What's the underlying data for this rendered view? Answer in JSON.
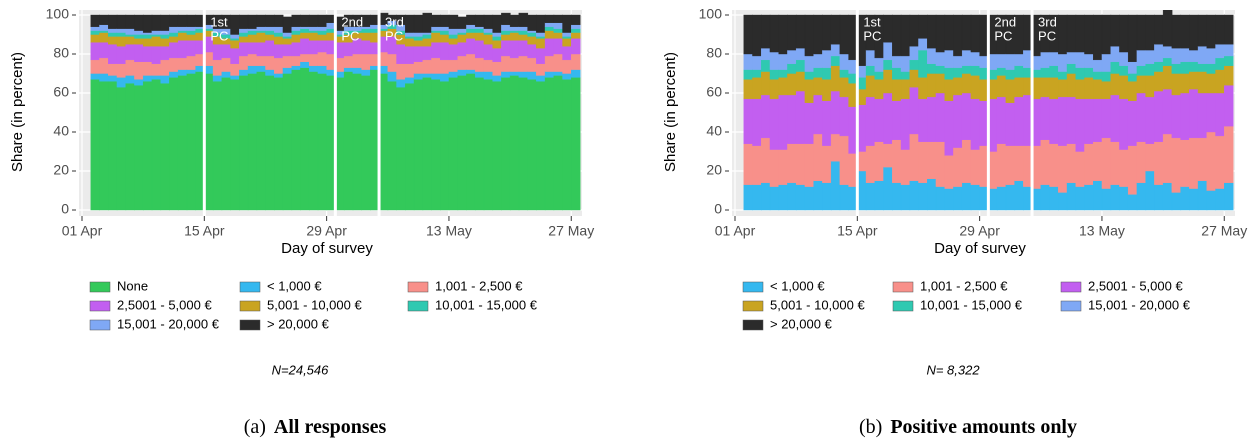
{
  "chart_data": [
    {
      "type": "area",
      "stacked": true,
      "step": true,
      "y_label": "Share (in percent)",
      "x_label": "Day of survey",
      "x": [
        "04-02",
        "04-03",
        "04-04",
        "04-05",
        "04-06",
        "04-07",
        "04-08",
        "04-09",
        "04-10",
        "04-11",
        "04-12",
        "04-13",
        "04-14",
        "04-15",
        "04-16",
        "04-17",
        "04-18",
        "04-19",
        "04-20",
        "04-21",
        "04-22",
        "04-23",
        "04-24",
        "04-25",
        "04-26",
        "04-27",
        "04-28",
        "04-29",
        "04-30",
        "05-01",
        "05-02",
        "05-03",
        "05-04",
        "05-05",
        "05-06",
        "05-07",
        "05-08",
        "05-09",
        "05-10",
        "05-11",
        "05-12",
        "05-13",
        "05-14",
        "05-15",
        "05-16",
        "05-17",
        "05-18",
        "05-19",
        "05-20",
        "05-21",
        "05-22",
        "05-23",
        "05-24",
        "05-25",
        "05-26",
        "05-27"
      ],
      "series": [
        {
          "name": "None",
          "color": "#33c95a",
          "values": [
            67,
            66,
            66,
            63,
            65,
            64,
            66,
            67,
            65,
            68,
            69,
            70,
            71,
            70,
            66,
            68,
            67,
            69,
            70,
            71,
            69,
            68,
            70,
            72,
            73,
            71,
            70,
            69,
            68,
            71,
            70,
            69,
            72,
            70,
            66,
            63,
            65,
            67,
            68,
            67,
            66,
            68,
            69,
            70,
            68,
            67,
            66,
            68,
            69,
            68,
            67,
            66,
            68,
            69,
            67,
            68
          ]
        },
        {
          "name": "< 1,000 €",
          "color": "#35b8ef",
          "values": [
            3,
            4,
            3,
            5,
            4,
            3,
            3,
            2,
            4,
            3,
            3,
            2,
            3,
            4,
            3,
            3,
            2,
            3,
            4,
            3,
            3,
            2,
            3,
            2,
            3,
            3,
            4,
            3,
            3,
            2,
            3,
            3,
            2,
            4,
            5,
            4,
            3,
            3,
            2,
            3,
            4,
            3,
            3,
            2,
            3,
            4,
            3,
            3,
            2,
            3,
            4,
            3,
            3,
            2,
            3,
            4
          ]
        },
        {
          "name": "1,001 - 2,500 €",
          "color": "#f8908a",
          "values": [
            7,
            8,
            6,
            7,
            8,
            9,
            7,
            6,
            8,
            7,
            6,
            7,
            6,
            7,
            8,
            7,
            6,
            7,
            6,
            5,
            7,
            8,
            6,
            5,
            4,
            6,
            7,
            8,
            7,
            6,
            7,
            8,
            6,
            7,
            9,
            8,
            7,
            6,
            7,
            8,
            7,
            6,
            7,
            8,
            7,
            6,
            7,
            8,
            7,
            8,
            7,
            6,
            8,
            9,
            7,
            8
          ]
        },
        {
          "name": "2,5001 - 5,000 €",
          "color": "#c25ff0",
          "values": [
            9,
            8,
            10,
            9,
            8,
            9,
            8,
            9,
            7,
            8,
            9,
            8,
            7,
            8,
            8,
            7,
            8,
            7,
            6,
            7,
            8,
            7,
            6,
            7,
            8,
            7,
            6,
            7,
            8,
            7,
            8,
            7,
            6,
            8,
            9,
            10,
            9,
            8,
            7,
            8,
            9,
            8,
            7,
            8,
            9,
            8,
            7,
            8,
            9,
            8,
            7,
            8,
            9,
            8,
            7,
            8
          ]
        },
        {
          "name": "5,001 - 10,000 €",
          "color": "#c9a421",
          "values": [
            4,
            5,
            4,
            5,
            4,
            3,
            4,
            5,
            4,
            3,
            4,
            3,
            4,
            3,
            4,
            3,
            4,
            3,
            4,
            5,
            3,
            4,
            3,
            4,
            3,
            4,
            3,
            4,
            3,
            4,
            3,
            4,
            5,
            3,
            4,
            5,
            4,
            3,
            4,
            5,
            4,
            3,
            4,
            3,
            4,
            5,
            4,
            3,
            4,
            3,
            4,
            5,
            4,
            3,
            4,
            3
          ]
        },
        {
          "name": "10,001 - 15,000 €",
          "color": "#2fc9b1",
          "values": [
            2,
            1,
            2,
            2,
            1,
            2,
            2,
            1,
            2,
            2,
            1,
            2,
            2,
            1,
            2,
            2,
            1,
            2,
            2,
            1,
            2,
            2,
            1,
            2,
            2,
            1,
            2,
            2,
            1,
            2,
            1,
            2,
            2,
            1,
            2,
            2,
            1,
            2,
            2,
            1,
            2,
            2,
            1,
            2,
            2,
            1,
            2,
            2,
            1,
            2,
            2,
            1,
            2,
            2,
            1,
            2
          ]
        },
        {
          "name": "15,001 - 20,000 €",
          "color": "#7fa8f5",
          "values": [
            2,
            3,
            2,
            2,
            3,
            2,
            1,
            2,
            2,
            3,
            2,
            2,
            1,
            2,
            2,
            3,
            2,
            2,
            1,
            2,
            2,
            3,
            2,
            2,
            1,
            2,
            2,
            3,
            2,
            2,
            2,
            1,
            2,
            2,
            2,
            3,
            2,
            2,
            1,
            2,
            2,
            3,
            2,
            2,
            1,
            2,
            2,
            3,
            2,
            2,
            1,
            2,
            2,
            3,
            2,
            2
          ]
        },
        {
          "name": "> 20,000 €",
          "color": "#2b2b2b",
          "values": [
            6,
            5,
            7,
            7,
            7,
            8,
            9,
            8,
            8,
            6,
            6,
            6,
            6,
            5,
            7,
            7,
            10,
            7,
            7,
            6,
            6,
            6,
            8,
            6,
            6,
            6,
            6,
            4,
            7,
            6,
            6,
            6,
            5,
            6,
            3,
            5,
            9,
            9,
            10,
            6,
            6,
            7,
            6,
            5,
            6,
            7,
            9,
            6,
            6,
            7,
            8,
            9,
            4,
            4,
            9,
            5
          ]
        }
      ],
      "xlim": [
        "04-01",
        "05-28"
      ],
      "xticks": [
        {
          "value": "04-01",
          "label": "01 Apr"
        },
        {
          "value": "04-15",
          "label": "15 Apr"
        },
        {
          "value": "04-29",
          "label": "29 Apr"
        },
        {
          "value": "05-13",
          "label": "13 May"
        },
        {
          "value": "05-27",
          "label": "27 May"
        }
      ],
      "ylim": [
        0,
        100
      ],
      "yticks": [
        0,
        20,
        40,
        60,
        80,
        100
      ],
      "grid": true,
      "legend": "bottom",
      "annotations": [
        {
          "x": "04-15",
          "lines": [
            "1st",
            "PC"
          ]
        },
        {
          "x": "04-30",
          "lines": [
            "2nd",
            "PC"
          ]
        },
        {
          "x": "05-05",
          "lines": [
            "3rd",
            "PC"
          ]
        }
      ],
      "note": "N=24,546",
      "caption": {
        "label": "(a)",
        "title": "All responses"
      }
    },
    {
      "type": "area",
      "stacked": true,
      "step": true,
      "y_label": "Share (in percent)",
      "x_label": "Day of survey",
      "x": [
        "04-02",
        "04-03",
        "04-04",
        "04-05",
        "04-06",
        "04-07",
        "04-08",
        "04-09",
        "04-10",
        "04-11",
        "04-12",
        "04-13",
        "04-14",
        "04-15",
        "04-16",
        "04-17",
        "04-18",
        "04-19",
        "04-20",
        "04-21",
        "04-22",
        "04-23",
        "04-24",
        "04-25",
        "04-26",
        "04-27",
        "04-28",
        "04-29",
        "04-30",
        "05-01",
        "05-02",
        "05-03",
        "05-04",
        "05-05",
        "05-06",
        "05-07",
        "05-08",
        "05-09",
        "05-10",
        "05-11",
        "05-12",
        "05-13",
        "05-14",
        "05-15",
        "05-16",
        "05-17",
        "05-18",
        "05-19",
        "05-20",
        "05-21",
        "05-22",
        "05-23",
        "05-24",
        "05-25",
        "05-26",
        "05-27"
      ],
      "series": [
        {
          "name": "< 1,000 €",
          "color": "#35b8ef",
          "values": [
            13,
            13,
            14,
            12,
            13,
            14,
            13,
            12,
            15,
            14,
            25,
            13,
            12,
            20,
            14,
            15,
            22,
            14,
            13,
            15,
            14,
            16,
            12,
            11,
            12,
            14,
            13,
            12,
            11,
            12,
            13,
            15,
            12,
            11,
            13,
            12,
            9,
            14,
            12,
            13,
            15,
            11,
            13,
            12,
            8,
            14,
            20,
            13,
            14,
            9,
            12,
            11,
            15,
            10,
            11,
            14
          ]
        },
        {
          "name": "1,001 - 2,500 €",
          "color": "#f8908a",
          "values": [
            21,
            20,
            23,
            19,
            18,
            20,
            21,
            22,
            24,
            19,
            14,
            25,
            17,
            10,
            19,
            20,
            12,
            22,
            18,
            24,
            21,
            19,
            23,
            17,
            20,
            22,
            18,
            21,
            19,
            22,
            20,
            18,
            21,
            22,
            23,
            22,
            24,
            20,
            18,
            21,
            20,
            26,
            22,
            19,
            25,
            21,
            14,
            22,
            25,
            28,
            24,
            26,
            22,
            30,
            27,
            29
          ]
        },
        {
          "name": "2,5001 - 5,000 €",
          "color": "#c25ff0",
          "values": [
            23,
            24,
            22,
            26,
            28,
            25,
            27,
            21,
            20,
            23,
            22,
            20,
            24,
            24,
            25,
            22,
            26,
            20,
            26,
            24,
            22,
            23,
            25,
            28,
            27,
            24,
            26,
            23,
            27,
            24,
            22,
            25,
            26,
            24,
            22,
            23,
            25,
            24,
            27,
            23,
            22,
            20,
            24,
            26,
            23,
            25,
            24,
            26,
            23,
            22,
            24,
            25,
            23,
            20,
            22,
            21
          ]
        },
        {
          "name": "5,001 - 10,000 €",
          "color": "#c9a421",
          "values": [
            10,
            11,
            12,
            10,
            9,
            11,
            10,
            12,
            9,
            11,
            13,
            10,
            12,
            8,
            11,
            10,
            12,
            11,
            10,
            9,
            11,
            12,
            10,
            11,
            9,
            10,
            12,
            11,
            10,
            11,
            12,
            10,
            9,
            11,
            10,
            11,
            9,
            12,
            10,
            11,
            10,
            9,
            11,
            12,
            10,
            9,
            11,
            10,
            12,
            11,
            10,
            9,
            11,
            10,
            12,
            10
          ]
        },
        {
          "name": "10,001 - 15,000 €",
          "color": "#2fc9b1",
          "values": [
            5,
            4,
            6,
            5,
            4,
            5,
            6,
            4,
            5,
            6,
            5,
            4,
            5,
            6,
            5,
            4,
            5,
            6,
            4,
            5,
            14,
            5,
            4,
            6,
            5,
            4,
            5,
            6,
            5,
            4,
            5,
            6,
            5,
            4,
            5,
            6,
            4,
            5,
            6,
            5,
            4,
            5,
            6,
            5,
            4,
            5,
            6,
            5,
            4,
            5,
            6,
            5,
            4,
            5,
            6,
            5
          ]
        },
        {
          "name": "15,001 - 20,000 €",
          "color": "#7fa8f5",
          "values": [
            8,
            7,
            6,
            9,
            8,
            7,
            6,
            8,
            7,
            9,
            6,
            8,
            7,
            6,
            8,
            7,
            9,
            6,
            8,
            7,
            6,
            8,
            7,
            9,
            6,
            8,
            7,
            6,
            8,
            7,
            8,
            6,
            9,
            7,
            8,
            7,
            9,
            6,
            8,
            7,
            6,
            9,
            8,
            7,
            6,
            8,
            7,
            9,
            6,
            8,
            7,
            6,
            9,
            8,
            7,
            6
          ]
        },
        {
          "name": "> 20,000 €",
          "color": "#2b2b2b",
          "values": [
            20,
            21,
            17,
            19,
            20,
            18,
            17,
            21,
            20,
            18,
            15,
            20,
            23,
            26,
            18,
            22,
            14,
            21,
            21,
            16,
            12,
            17,
            19,
            18,
            21,
            18,
            19,
            21,
            20,
            20,
            20,
            20,
            18,
            21,
            19,
            19,
            20,
            19,
            19,
            20,
            23,
            20,
            16,
            19,
            24,
            18,
            18,
            15,
            22,
            17,
            17,
            18,
            16,
            17,
            15,
            15
          ]
        }
      ],
      "xlim": [
        "04-01",
        "05-28"
      ],
      "xticks": [
        {
          "value": "04-01",
          "label": "01 Apr"
        },
        {
          "value": "04-15",
          "label": "15 Apr"
        },
        {
          "value": "04-29",
          "label": "29 Apr"
        },
        {
          "value": "05-13",
          "label": "13 May"
        },
        {
          "value": "05-27",
          "label": "27 May"
        }
      ],
      "ylim": [
        0,
        100
      ],
      "yticks": [
        0,
        20,
        40,
        60,
        80,
        100
      ],
      "grid": true,
      "legend": "bottom",
      "annotations": [
        {
          "x": "04-15",
          "lines": [
            "1st",
            "PC"
          ]
        },
        {
          "x": "04-30",
          "lines": [
            "2nd",
            "PC"
          ]
        },
        {
          "x": "05-05",
          "lines": [
            "3rd",
            "PC"
          ]
        }
      ],
      "note": "N= 8,322",
      "caption": {
        "label": "(b)",
        "title": "Positive amounts only"
      }
    }
  ]
}
